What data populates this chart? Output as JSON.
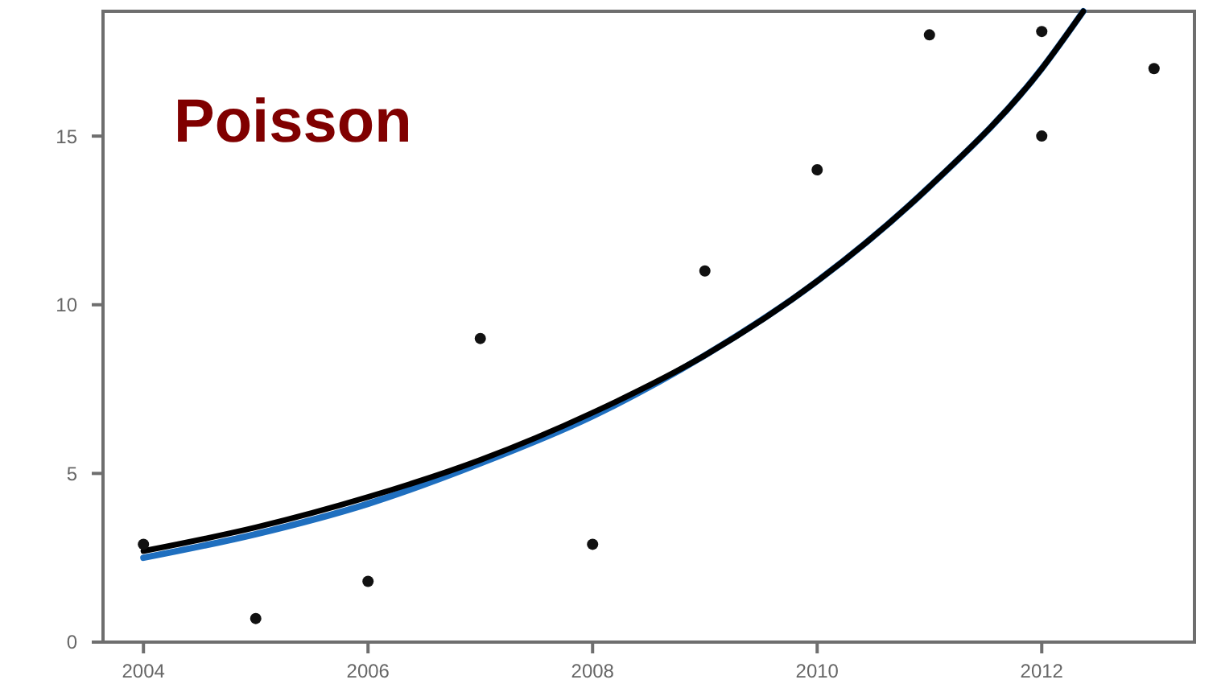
{
  "chart_data": {
    "type": "scatter",
    "title": "Poisson",
    "xlim": [
      2003.64,
      2013.36
    ],
    "ylim": [
      0,
      18.7
    ],
    "xticks": [
      2004,
      2006,
      2008,
      2010,
      2012
    ],
    "yticks": [
      0,
      5,
      10,
      15
    ],
    "grid": false,
    "series": [
      {
        "type": "line",
        "color": "#1f6fbf",
        "x": [
          2004,
          2005,
          2006,
          2007,
          2008,
          2009,
          2010,
          2011,
          2012,
          2012.37
        ],
        "values": [
          2.5,
          3.2,
          4.1,
          5.3,
          6.7,
          8.5,
          10.7,
          13.5,
          17.0,
          18.7
        ]
      },
      {
        "type": "line",
        "color": "#000000",
        "x": [
          2004,
          2005,
          2006,
          2007,
          2008,
          2009,
          2010,
          2011,
          2012,
          2012.37
        ],
        "values": [
          2.7,
          3.4,
          4.3,
          5.4,
          6.8,
          8.5,
          10.7,
          13.5,
          17.0,
          18.7
        ]
      },
      {
        "marker": "circle",
        "color": "#111111",
        "x": [
          2004,
          2005,
          2006,
          2007,
          2008,
          2009,
          2010,
          2011,
          2012,
          2012,
          2013
        ],
        "values": [
          2.9,
          0.7,
          1.8,
          9,
          2.9,
          11,
          14,
          18,
          15,
          18.1,
          17
        ]
      }
    ]
  }
}
